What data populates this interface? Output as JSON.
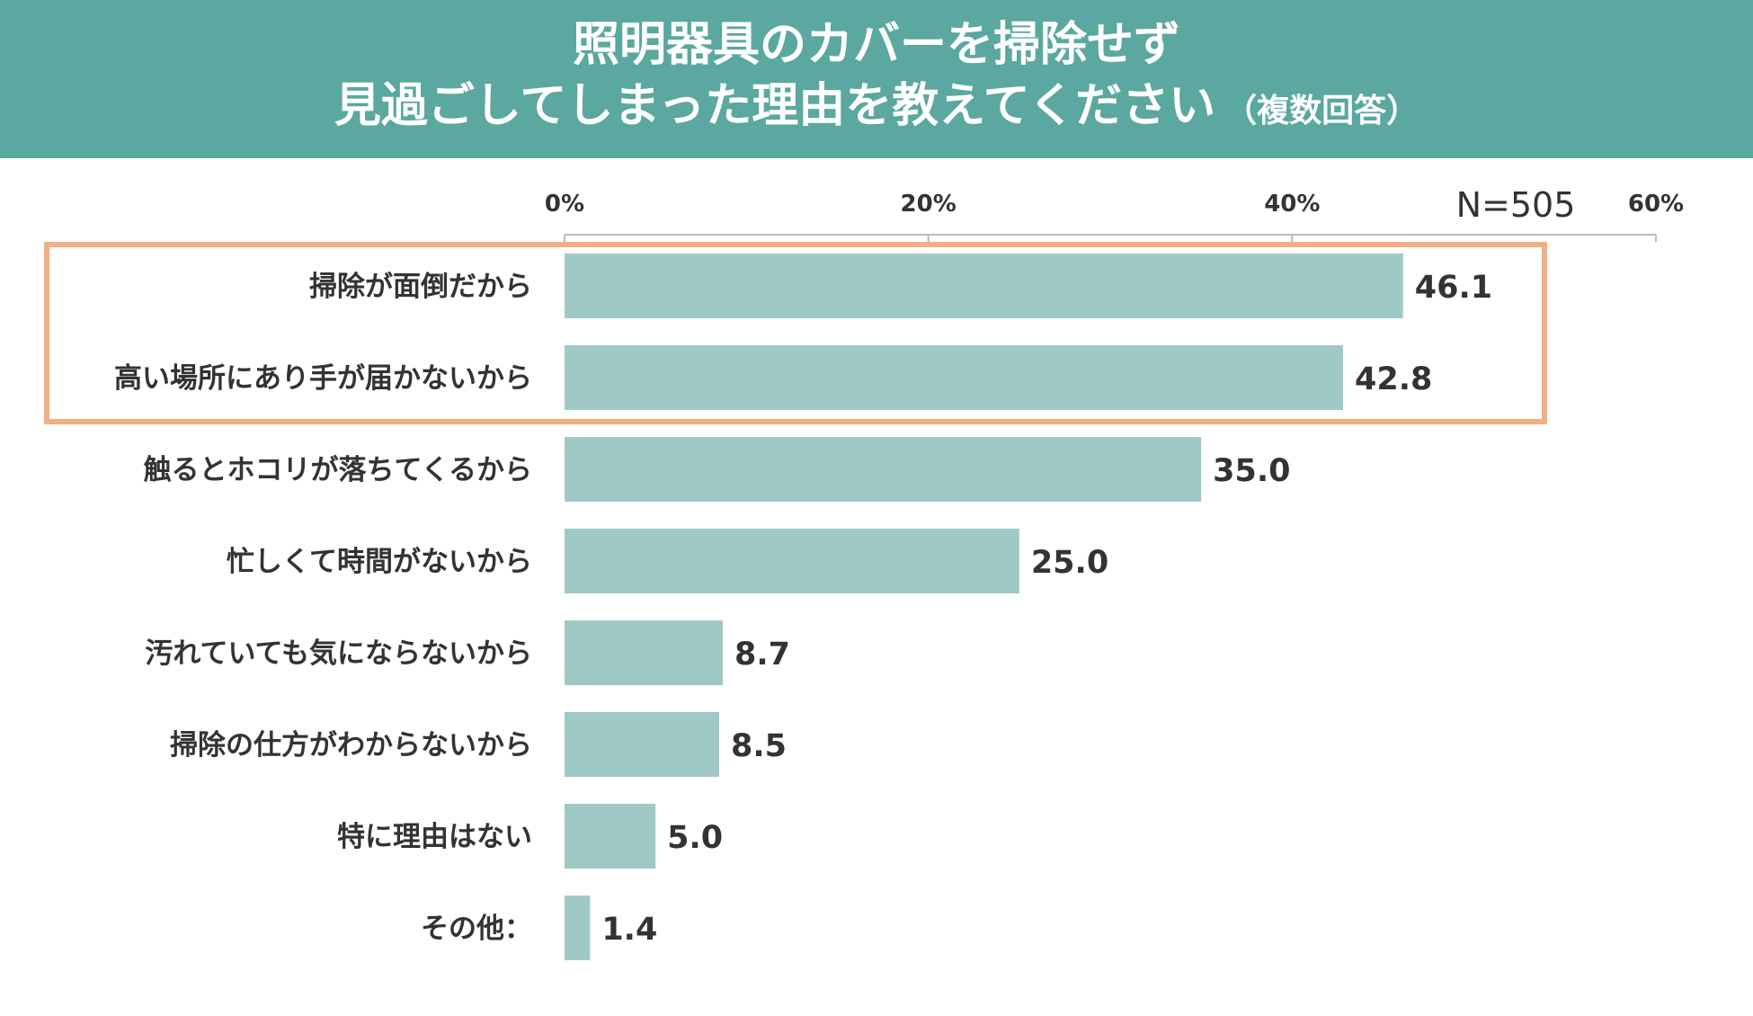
{
  "header": {
    "title_line1": "照明器具のカバーを掃除せず",
    "title_line2": "見過ごしてしまった理由を教えてください",
    "title_note": "（複数回答）"
  },
  "colors": {
    "header_bg": "#5aa89f",
    "bar": "#9fc9c5",
    "highlight_border": "#f0b084",
    "text": "#333333",
    "axis": "#bbbbbb"
  },
  "chart_data": {
    "type": "bar",
    "orientation": "horizontal",
    "sample_size_label": "N=505",
    "xlim": [
      0,
      60
    ],
    "x_ticks": [
      "0%",
      "20%",
      "40%",
      "60%"
    ],
    "x_tick_values": [
      0,
      20,
      40,
      60
    ],
    "categories": [
      "掃除が面倒だから",
      "高い場所にあり手が届かないから",
      "触るとホコリが落ちてくるから",
      "忙しくて時間がないから",
      "汚れていても気にならないから",
      "掃除の仕方がわからないから",
      "特に理由はない",
      "その他："
    ],
    "values": [
      46.1,
      42.8,
      35.0,
      25.0,
      8.7,
      8.5,
      5.0,
      1.4
    ],
    "value_labels": [
      "46.1",
      "42.8",
      "35.0",
      "25.0",
      "8.7",
      "8.5",
      "5.0",
      "1.4"
    ],
    "highlighted_categories": [
      0,
      1
    ],
    "unit": "%"
  }
}
